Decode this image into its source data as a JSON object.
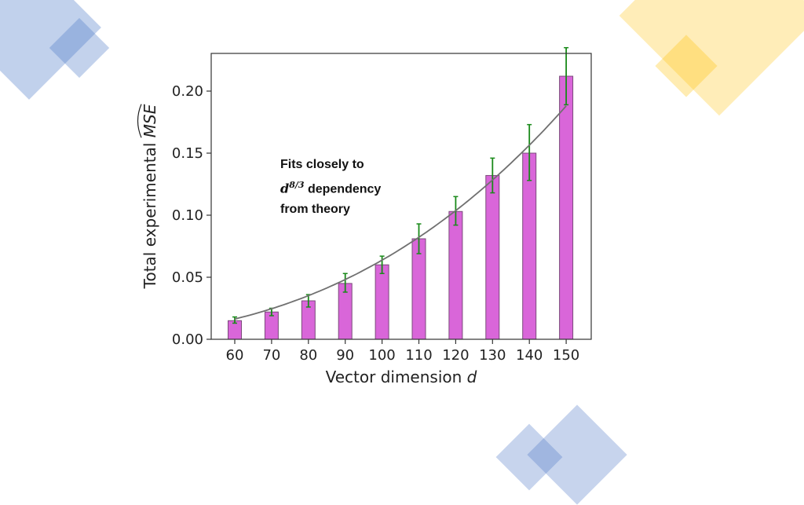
{
  "decorations": {
    "blue": "#4472c4",
    "gold": "#ffc000"
  },
  "annotation": {
    "line1": "Fits closely to",
    "math_base": "d",
    "math_exp": "8/3",
    "line2_suffix": " dependency",
    "line3": "from theory"
  },
  "chart_data": {
    "type": "bar",
    "xlabel": "Vector dimension d",
    "ylabel": "Total experimental MSE",
    "categories": [
      "60",
      "70",
      "80",
      "90",
      "100",
      "110",
      "120",
      "130",
      "140",
      "150"
    ],
    "x": [
      60,
      70,
      80,
      90,
      100,
      110,
      120,
      130,
      140,
      150
    ],
    "values": [
      0.015,
      0.022,
      0.031,
      0.045,
      0.06,
      0.081,
      0.103,
      0.132,
      0.15,
      0.212
    ],
    "error_low": [
      0.013,
      0.019,
      0.026,
      0.038,
      0.053,
      0.069,
      0.092,
      0.118,
      0.128,
      0.189
    ],
    "error_high": [
      0.018,
      0.025,
      0.036,
      0.053,
      0.067,
      0.093,
      0.115,
      0.146,
      0.173,
      0.235
    ],
    "fit": {
      "form": "c*d^(8/3)",
      "c": 2.96e-07,
      "label": "d^(8/3) fit"
    },
    "ylim": [
      0,
      0.25
    ],
    "yticks": [
      "0.00",
      "0.05",
      "0.10",
      "0.15",
      "0.20"
    ],
    "grid": false,
    "colors": {
      "bar": "#d966d9",
      "bar_edge": "#7a4a7a",
      "error": "#1a8a1a",
      "fit": "#707070",
      "axis": "#333333"
    }
  }
}
